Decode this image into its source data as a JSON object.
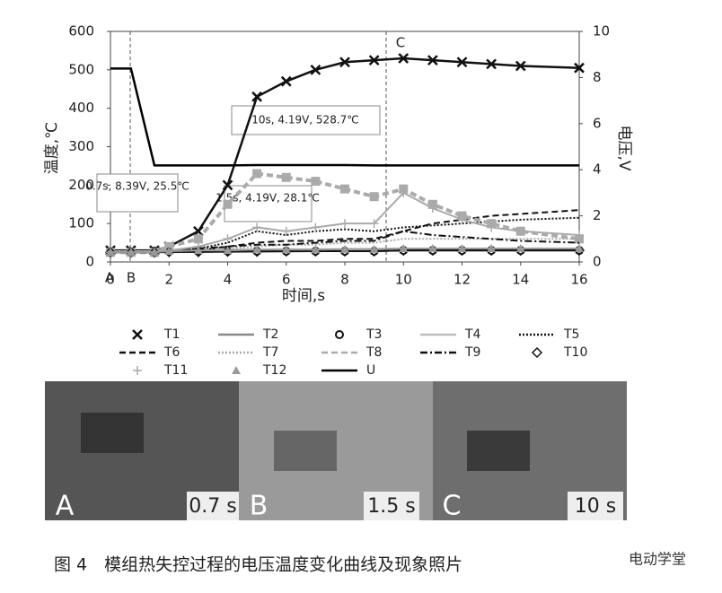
{
  "chart_data": {
    "type": "line",
    "xlabel": "时间,s",
    "ylabel": "温度,℃",
    "y2label": "电压,V",
    "x": [
      0,
      0.7,
      1.5,
      2,
      3,
      4,
      5,
      6,
      7,
      8,
      9,
      10,
      11,
      12,
      13,
      14,
      16
    ],
    "xlim": [
      0,
      16
    ],
    "xticks": [
      0,
      2,
      4,
      6,
      8,
      10,
      12,
      14,
      16
    ],
    "ylim": [
      0,
      600
    ],
    "yticks": [
      0,
      100,
      200,
      300,
      400,
      500,
      600
    ],
    "y2lim": [
      0,
      10
    ],
    "y2ticks": [
      0,
      2,
      4,
      6,
      8,
      10
    ],
    "series": [
      {
        "name": "T1",
        "color": "#111111",
        "dash": "none",
        "marker": "x",
        "values": [
          30,
          30,
          30,
          40,
          80,
          200,
          430,
          470,
          500,
          520,
          525,
          530,
          525,
          520,
          515,
          510,
          505
        ]
      },
      {
        "name": "T2",
        "color": "#888888",
        "dash": "none",
        "marker": "none",
        "values": [
          25,
          25,
          25,
          25,
          26,
          26,
          27,
          27,
          28,
          28,
          28,
          30,
          30,
          30,
          30,
          30,
          30
        ]
      },
      {
        "name": "T3",
        "color": "#111111",
        "dash": "none",
        "marker": "circle",
        "values": [
          25,
          25,
          28,
          28,
          28,
          28,
          28,
          28,
          28,
          28,
          28,
          30,
          30,
          30,
          30,
          30,
          30
        ]
      },
      {
        "name": "T4",
        "color": "#bbbbbb",
        "dash": "none",
        "marker": "none",
        "values": [
          28,
          28,
          28,
          30,
          30,
          32,
          32,
          33,
          33,
          34,
          34,
          35,
          35,
          35,
          35,
          35,
          35
        ]
      },
      {
        "name": "T5",
        "color": "#111111",
        "dash": "2,2",
        "marker": "none",
        "values": [
          25,
          25,
          25,
          30,
          35,
          50,
          80,
          70,
          80,
          85,
          80,
          90,
          95,
          100,
          105,
          110,
          115
        ]
      },
      {
        "name": "T6",
        "color": "#111111",
        "dash": "7,4",
        "marker": "none",
        "values": [
          25,
          25,
          25,
          28,
          30,
          40,
          50,
          55,
          55,
          60,
          60,
          80,
          100,
          110,
          120,
          125,
          135
        ]
      },
      {
        "name": "T7",
        "color": "#aaaaaa",
        "dash": "2,2",
        "marker": "none",
        "values": [
          25,
          25,
          25,
          28,
          30,
          35,
          40,
          45,
          45,
          50,
          50,
          60,
          60,
          60,
          60,
          60,
          60
        ]
      },
      {
        "name": "T8",
        "color": "#aaaaaa",
        "dash": "7,4",
        "marker": "square",
        "values": [
          25,
          25,
          25,
          40,
          60,
          150,
          230,
          220,
          210,
          190,
          170,
          190,
          150,
          120,
          100,
          80,
          60
        ]
      },
      {
        "name": "T9",
        "color": "#111111",
        "dash": "8,3,2,3",
        "marker": "none",
        "values": [
          25,
          25,
          25,
          30,
          35,
          40,
          45,
          45,
          50,
          55,
          55,
          80,
          70,
          65,
          60,
          55,
          50
        ]
      },
      {
        "name": "T10",
        "color": "#111111",
        "dash": "none",
        "marker": "diamond",
        "values": [
          25,
          25,
          25,
          26,
          26,
          27,
          27,
          28,
          28,
          28,
          28,
          30,
          30,
          30,
          30,
          30,
          30
        ]
      },
      {
        "name": "T11",
        "color": "#aaaaaa",
        "dash": "none",
        "marker": "plus",
        "values": [
          25,
          25,
          25,
          30,
          40,
          60,
          90,
          80,
          90,
          100,
          100,
          180,
          140,
          110,
          90,
          80,
          70
        ]
      },
      {
        "name": "T12",
        "color": "#999999",
        "dash": "none",
        "marker": "triangle",
        "values": [
          25,
          25,
          26,
          28,
          30,
          30,
          32,
          32,
          32,
          33,
          33,
          35,
          35,
          35,
          35,
          35,
          35
        ]
      },
      {
        "name": "U",
        "color": "#000000",
        "dash": "none",
        "marker": "none",
        "axis": "y2",
        "values": [
          8.39,
          8.39,
          4.19,
          4.19,
          4.19,
          4.19,
          4.2,
          4.2,
          4.2,
          4.2,
          4.19,
          4.19,
          4.19,
          4.19,
          4.19,
          4.19,
          4.19
        ]
      }
    ],
    "annotations": [
      "0.7s, 8.39V, 25.5℃",
      "1.5s, 4.19V, 28.1℃",
      "10s, 4.19V, 528.7℃"
    ],
    "point_labels": [
      "A",
      "B",
      "C"
    ],
    "photo_labels": [
      "A",
      "0.7 s",
      "B",
      "1.5 s",
      "C",
      "10 s"
    ],
    "caption": "图 4　模组热失控过程的电压温度变化曲线及现象照片",
    "watermark": "电动学堂"
  }
}
